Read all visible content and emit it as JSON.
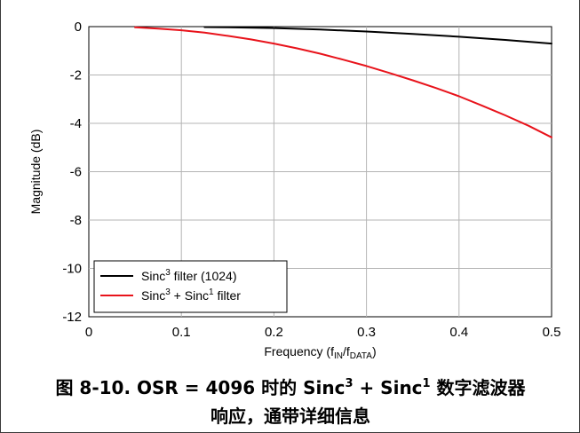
{
  "chart_data": {
    "type": "line",
    "title": "",
    "xlabel": "Frequency (fIN/fDATA)",
    "xlabel_parts": {
      "main": "Frequency (f",
      "sub1": "IN",
      "mid": "/f",
      "sub2": "DATA",
      "end": ")"
    },
    "ylabel": "Magnitude (dB)",
    "xlim": [
      0,
      0.5
    ],
    "ylim": [
      -12,
      0
    ],
    "xticks": [
      "0",
      "0.1",
      "0.2",
      "0.3",
      "0.4",
      "0.5"
    ],
    "yticks": [
      "0",
      "-2",
      "-4",
      "-6",
      "-8",
      "-10",
      "-12"
    ],
    "grid": true,
    "legend_position": "bottom-left",
    "series": [
      {
        "name": "Sinc3 filter (1024)",
        "legend": {
          "pre": "Sinc",
          "sup": "3",
          "post": " filter (1024)"
        },
        "color": "#000000",
        "x": [
          0.125,
          0.15,
          0.2,
          0.25,
          0.3,
          0.35,
          0.4,
          0.45,
          0.5
        ],
        "y": [
          -0.02,
          -0.03,
          -0.06,
          -0.12,
          -0.2,
          -0.3,
          -0.42,
          -0.55,
          -0.7
        ]
      },
      {
        "name": "Sinc3 + Sinc1 filter",
        "legend": {
          "pre": "Sinc",
          "sup": "3",
          "mid": " + Sinc",
          "sup2": "1",
          "post": " filter"
        },
        "color": "#e8131b",
        "x": [
          0.05,
          0.075,
          0.1,
          0.125,
          0.15,
          0.175,
          0.2,
          0.225,
          0.25,
          0.275,
          0.3,
          0.325,
          0.35,
          0.375,
          0.4,
          0.425,
          0.45,
          0.475,
          0.5
        ],
        "y": [
          -0.03,
          -0.08,
          -0.15,
          -0.25,
          -0.38,
          -0.53,
          -0.7,
          -0.9,
          -1.12,
          -1.37,
          -1.63,
          -1.92,
          -2.22,
          -2.54,
          -2.88,
          -3.27,
          -3.67,
          -4.1,
          -4.58
        ]
      }
    ]
  },
  "caption": {
    "line1": {
      "pre": "图 8-10. OSR = 4096 时的 Sinc",
      "sup": "3",
      "mid": " + Sinc",
      "sup2": "1",
      "post": " 数字滤波器"
    },
    "line2": "响应，通带详细信息"
  }
}
